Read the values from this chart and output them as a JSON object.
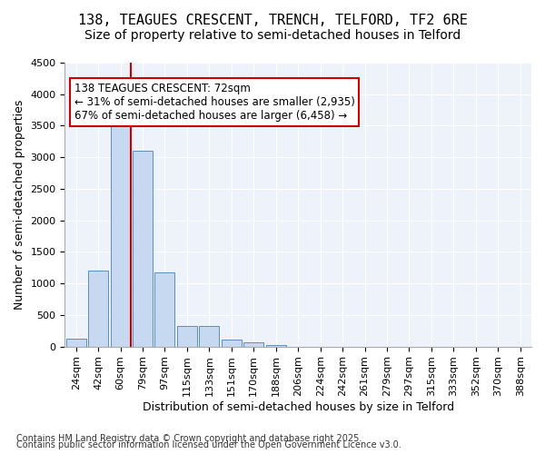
{
  "title_line1": "138, TEAGUES CRESCENT, TRENCH, TELFORD, TF2 6RE",
  "title_line2": "Size of property relative to semi-detached houses in Telford",
  "xlabel": "Distribution of semi-detached houses by size in Telford",
  "ylabel": "Number of semi-detached properties",
  "categories": [
    "24sqm",
    "42sqm",
    "60sqm",
    "79sqm",
    "97sqm",
    "115sqm",
    "133sqm",
    "151sqm",
    "170sqm",
    "188sqm",
    "206sqm",
    "224sqm",
    "242sqm",
    "261sqm",
    "279sqm",
    "297sqm",
    "315sqm",
    "333sqm",
    "352sqm",
    "370sqm",
    "388sqm"
  ],
  "values": [
    120,
    1200,
    3520,
    3100,
    1180,
    330,
    320,
    110,
    60,
    30,
    0,
    0,
    0,
    0,
    0,
    0,
    0,
    0,
    0,
    0,
    0
  ],
  "bar_color": "#c7d9f0",
  "bar_edge_color": "#5b8ec4",
  "property_line_x": 72,
  "property_line_bin": 2,
  "annotation_title": "138 TEAGUES CRESCENT: 72sqm",
  "annotation_smaller": "← 31% of semi-detached houses are smaller (2,935)",
  "annotation_larger": "67% of semi-detached houses are larger (6,458) →",
  "annotation_box_color": "#ffffff",
  "annotation_box_edge": "#cc0000",
  "vline_color": "#cc0000",
  "ylim": [
    0,
    4500
  ],
  "yticks": [
    0,
    500,
    1000,
    1500,
    2000,
    2500,
    3000,
    3500,
    4000,
    4500
  ],
  "footnote1": "Contains HM Land Registry data © Crown copyright and database right 2025.",
  "footnote2": "Contains public sector information licensed under the Open Government Licence v3.0.",
  "bg_color": "#eef3fb",
  "fig_bg_color": "#ffffff",
  "title_fontsize": 11,
  "subtitle_fontsize": 10,
  "axis_label_fontsize": 9,
  "tick_fontsize": 8,
  "annotation_fontsize": 8.5,
  "footnote_fontsize": 7
}
